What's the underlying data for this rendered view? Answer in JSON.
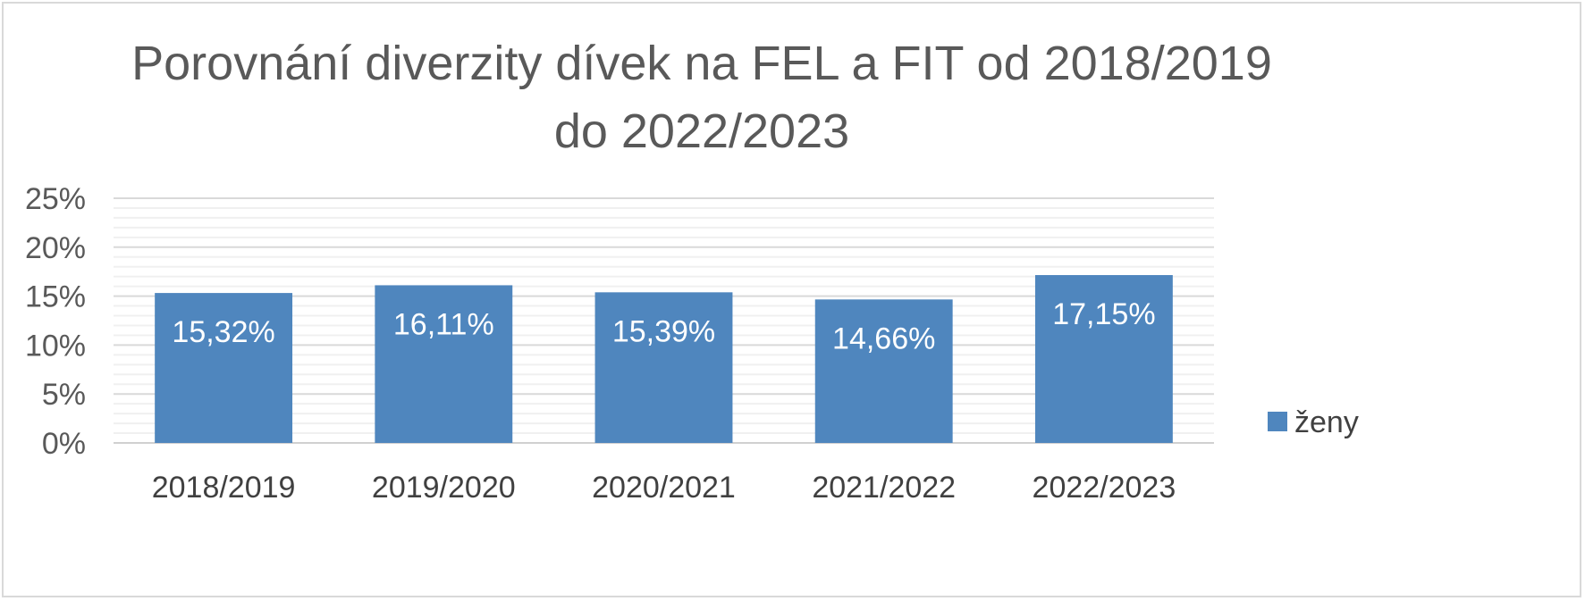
{
  "chart_data": {
    "type": "bar",
    "title_lines": [
      "Porovnání diverzity dívek na FEL a FIT od 2018/2019",
      "do 2022/2023"
    ],
    "categories": [
      "2018/2019",
      "2019/2020",
      "2020/2021",
      "2021/2022",
      "2022/2023"
    ],
    "series": [
      {
        "name": "ženy",
        "values": [
          15.32,
          16.11,
          15.39,
          14.66,
          17.15
        ],
        "labels": [
          "15,32%",
          "16,11%",
          "15,39%",
          "14,66%",
          "17,15%"
        ],
        "color": "#4f86be"
      }
    ],
    "ylim": [
      0,
      25
    ],
    "yticks": [
      0,
      5,
      10,
      15,
      20,
      25
    ],
    "ytick_labels": [
      "0%",
      "5%",
      "10%",
      "15%",
      "20%",
      "25%"
    ],
    "xlabel": "",
    "ylabel": "",
    "grid": true,
    "legend_position": "right"
  }
}
